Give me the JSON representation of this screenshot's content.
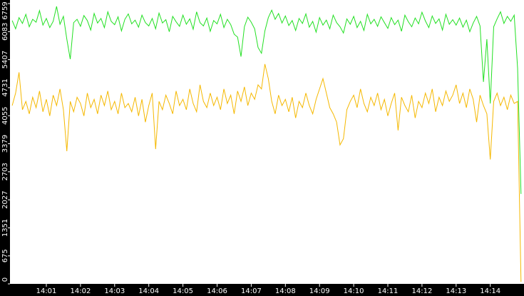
{
  "chart_data": {
    "type": "line",
    "categories": [
      null,
      null,
      null,
      null,
      null,
      null,
      null,
      null,
      null,
      null,
      "14:01",
      null,
      null,
      null,
      null,
      null,
      null,
      null,
      null,
      null,
      "14:02",
      null,
      null,
      null,
      null,
      null,
      null,
      null,
      null,
      null,
      "14:03",
      null,
      null,
      null,
      null,
      null,
      null,
      null,
      null,
      null,
      "14:04",
      null,
      null,
      null,
      null,
      null,
      null,
      null,
      null,
      null,
      "14:05",
      null,
      null,
      null,
      null,
      null,
      null,
      null,
      null,
      null,
      "14:06",
      null,
      null,
      null,
      null,
      null,
      null,
      null,
      null,
      null,
      "14:07",
      null,
      null,
      null,
      null,
      null,
      null,
      null,
      null,
      null,
      "14:08",
      null,
      null,
      null,
      null,
      null,
      null,
      null,
      null,
      null,
      "14:09",
      null,
      null,
      null,
      null,
      null,
      null,
      null,
      null,
      null,
      "14:10",
      null,
      null,
      null,
      null,
      null,
      null,
      null,
      null,
      null,
      "14:11",
      null,
      null,
      null,
      null,
      null,
      null,
      null,
      null,
      null,
      "14:12",
      null,
      null,
      null,
      null,
      null,
      null,
      null,
      null,
      null,
      "14:13",
      null,
      null,
      null,
      null,
      null,
      null,
      null,
      null,
      null,
      "14:14",
      null,
      null,
      null,
      null,
      null,
      null,
      null,
      null,
      null
    ],
    "series": [
      {
        "color": "#22e022",
        "values": [
          6350,
          6150,
          6420,
          6280,
          6500,
          6200,
          6380,
          6310,
          6590,
          6240,
          6400,
          6180,
          6330,
          6690,
          6260,
          6450,
          5900,
          5420,
          6300,
          6380,
          6210,
          6470,
          6350,
          6120,
          6520,
          6290,
          6400,
          6180,
          6560,
          6330,
          6250,
          6440,
          6100,
          6380,
          6510,
          6270,
          6360,
          6190,
          6480,
          6300,
          6220,
          6400,
          6150,
          6530,
          6290,
          6370,
          6080,
          6450,
          6320,
          6210,
          6480,
          6260,
          6390,
          6140,
          6560,
          6300,
          6220,
          6410,
          6090,
          6350,
          6270,
          6500,
          6180,
          6380,
          6250,
          6020,
          5950,
          5480,
          6200,
          6430,
          6310,
          6150,
          5700,
          5560,
          6100,
          6420,
          6600,
          6380,
          6520,
          6290,
          6460,
          6230,
          6350,
          6110,
          6400,
          6280,
          6510,
          6190,
          6330,
          6070,
          6420,
          6240,
          6360,
          6150,
          6480,
          6300,
          6200,
          6050,
          6390,
          6260,
          6450,
          6180,
          6330,
          6110,
          6500,
          6270,
          6380,
          6210,
          6440,
          6300,
          6160,
          6420,
          6250,
          6360,
          6090,
          6480,
          6320,
          6200,
          6410,
          6270,
          6550,
          6340,
          6180,
          6460,
          6280,
          6390,
          6120,
          6500,
          6260,
          6370,
          6240,
          6410,
          6190,
          6360,
          6080,
          6290,
          6450,
          6220,
          4870,
          5900,
          4350,
          6200,
          6390,
          6560,
          6280,
          6450,
          6330,
          6480,
          5200,
          2170
        ]
      },
      {
        "color": "#f5b800",
        "values": [
          4300,
          4600,
          5100,
          4200,
          4400,
          4100,
          4500,
          4250,
          4650,
          4150,
          4450,
          4050,
          4550,
          4300,
          4700,
          4200,
          3200,
          4400,
          4150,
          4500,
          4350,
          4050,
          4600,
          4250,
          4450,
          4100,
          4550,
          4300,
          4650,
          4200,
          4400,
          4100,
          4600,
          4250,
          4350,
          4150,
          4500,
          4050,
          4450,
          3900,
          4300,
          4600,
          3250,
          4400,
          4200,
          4550,
          4350,
          4100,
          4650,
          4300,
          4450,
          4200,
          4700,
          4350,
          4150,
          4800,
          4400,
          4250,
          4600,
          4300,
          4500,
          4200,
          4700,
          4350,
          4550,
          4100,
          4650,
          4400,
          4750,
          4300,
          4600,
          4450,
          4800,
          4700,
          5300,
          4950,
          4400,
          4100,
          4550,
          4300,
          4450,
          4150,
          4500,
          4000,
          4400,
          4250,
          4600,
          4300,
          4100,
          4450,
          4700,
          4950,
          4600,
          4250,
          4100,
          3900,
          3350,
          3500,
          4200,
          4400,
          4550,
          4250,
          4700,
          4350,
          4150,
          4500,
          4300,
          4600,
          4200,
          4450,
          4050,
          4350,
          4600,
          3700,
          4500,
          4300,
          4150,
          4550,
          4000,
          4400,
          4250,
          4600,
          4350,
          4700,
          4150,
          4500,
          4300,
          4650,
          4400,
          4550,
          4800,
          4350,
          4600,
          4250,
          4700,
          4450,
          3900,
          4550,
          4300,
          4100,
          3000,
          4400,
          4600,
          4300,
          4500,
          4200,
          4550,
          4350,
          4400,
          50
        ]
      }
    ],
    "ylim": [
      0,
      6759
    ],
    "yticks": [
      0,
      675,
      1351,
      2027,
      2703,
      3379,
      4055,
      4731,
      5407,
      6083,
      6759
    ]
  }
}
